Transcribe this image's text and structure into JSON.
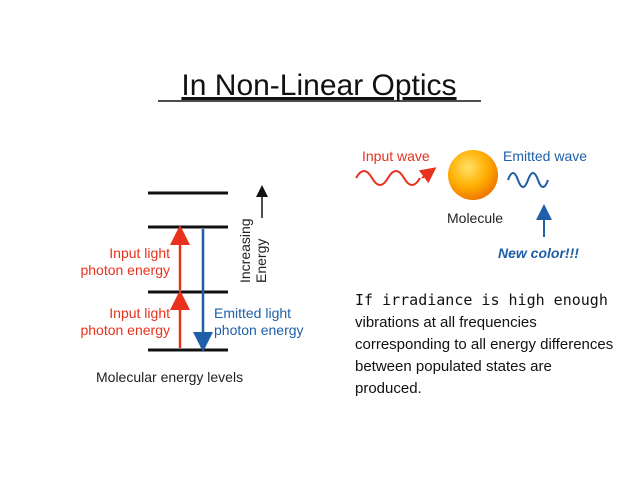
{
  "title": "In Non-Linear Optics",
  "energy_diagram": {
    "axis_label": [
      "Increasing",
      "Energy"
    ],
    "input_upper": [
      "Input light",
      "photon energy"
    ],
    "input_lower": [
      "Input light",
      "photon energy"
    ],
    "emitted": [
      "Emitted light",
      "photon energy"
    ],
    "caption": "Molecular energy levels"
  },
  "wave_diagram": {
    "input": "Input wave",
    "emitted": "Emitted wave",
    "molecule": "Molecule",
    "new_color": "New color!!!"
  },
  "body": {
    "lead": "If irradiance is high enough",
    "rest": "vibrations at all frequencies corresponding to all energy differences between populated states are produced."
  }
}
